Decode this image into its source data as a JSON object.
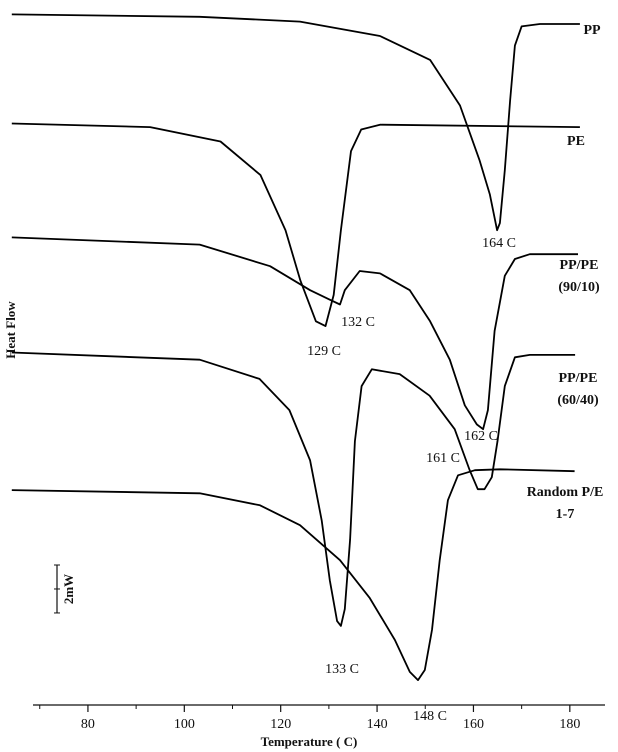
{
  "chart_data": {
    "type": "line",
    "x_label": "Temperature ( C)",
    "y_label": "Heat Flow",
    "scale_bar_label": "2mW",
    "scale_bar": [
      0,
      2
    ],
    "xlim": [
      68.6,
      187.3
    ],
    "ylim": [
      0,
      29.4
    ],
    "xticks": [
      80,
      100,
      120,
      140,
      160,
      180
    ],
    "xminorticks": [
      70,
      90,
      110,
      130,
      150,
      170
    ],
    "series": [
      {
        "name": "PP",
        "color": "#000000",
        "x": [
          64.2,
          103.2,
          124.0,
          140.6,
          151.0,
          157.2,
          161.3,
          163.4,
          164.9,
          165.5,
          166.5,
          167.6,
          168.6,
          170.0,
          173.8,
          182.1
        ],
        "values": [
          28.8,
          28.7,
          28.5,
          27.9,
          26.9,
          25.0,
          22.7,
          21.3,
          19.8,
          20.1,
          22.3,
          25.2,
          27.5,
          28.3,
          28.4,
          28.4
        ]
      },
      {
        "name": "PE",
        "color": "#000000",
        "x": [
          64.2,
          92.9,
          107.5,
          115.8,
          121.0,
          124.1,
          127.3,
          129.3,
          131.0,
          132.5,
          134.6,
          136.7,
          140.6,
          182.1
        ],
        "values": [
          24.25,
          24.1,
          23.5,
          22.1,
          19.8,
          17.7,
          16.0,
          15.8,
          17.1,
          19.8,
          23.1,
          24.0,
          24.2,
          24.1
        ]
      },
      {
        "name": "PP/PE (90/10)",
        "color": "#000000",
        "x": [
          64.2,
          103.2,
          117.8,
          126.1,
          130.2,
          132.3,
          133.3,
          136.4,
          140.6,
          146.8,
          151.0,
          155.1,
          158.2,
          160.7,
          162.0,
          163.0,
          164.4,
          166.5,
          168.6,
          171.7,
          181.7
        ],
        "values": [
          19.5,
          19.2,
          18.3,
          17.3,
          16.9,
          16.7,
          17.3,
          18.1,
          18.0,
          17.3,
          16.0,
          14.4,
          12.5,
          11.7,
          11.5,
          12.3,
          15.6,
          17.9,
          18.6,
          18.8,
          18.8
        ]
      },
      {
        "name": "PP/PE (60/40)",
        "color": "#000000",
        "x": [
          64.2,
          103.2,
          115.6,
          121.8,
          126.1,
          128.5,
          130.2,
          131.7,
          132.5,
          133.3,
          134.4,
          135.4,
          136.8,
          138.9,
          144.7,
          150.9,
          156.1,
          159.2,
          160.9,
          162.3,
          163.8,
          165.0,
          166.5,
          168.6,
          171.7,
          181.1
        ],
        "values": [
          14.7,
          14.4,
          13.6,
          12.3,
          10.2,
          7.7,
          5.2,
          3.5,
          3.3,
          4.0,
          6.9,
          11.0,
          13.3,
          14.0,
          13.8,
          12.9,
          11.5,
          9.8,
          9.0,
          9.0,
          9.5,
          11.0,
          13.3,
          14.5,
          14.6,
          14.6
        ]
      },
      {
        "name": "Random P/E 1-7",
        "color": "#000000",
        "x": [
          64.2,
          103.2,
          115.7,
          124.0,
          132.3,
          138.5,
          143.7,
          146.8,
          148.5,
          149.9,
          151.4,
          153.0,
          154.7,
          156.8,
          160.3,
          165.5,
          181.0
        ],
        "values": [
          8.96,
          8.83,
          8.33,
          7.5,
          6.04,
          4.46,
          2.71,
          1.38,
          1.04,
          1.46,
          3.13,
          6.04,
          8.54,
          9.58,
          9.79,
          9.83,
          9.75
        ]
      }
    ],
    "annotations": [
      "164 C",
      "132 C",
      "129 C",
      "162 C",
      "161 C",
      "133 C",
      "148 C"
    ]
  }
}
